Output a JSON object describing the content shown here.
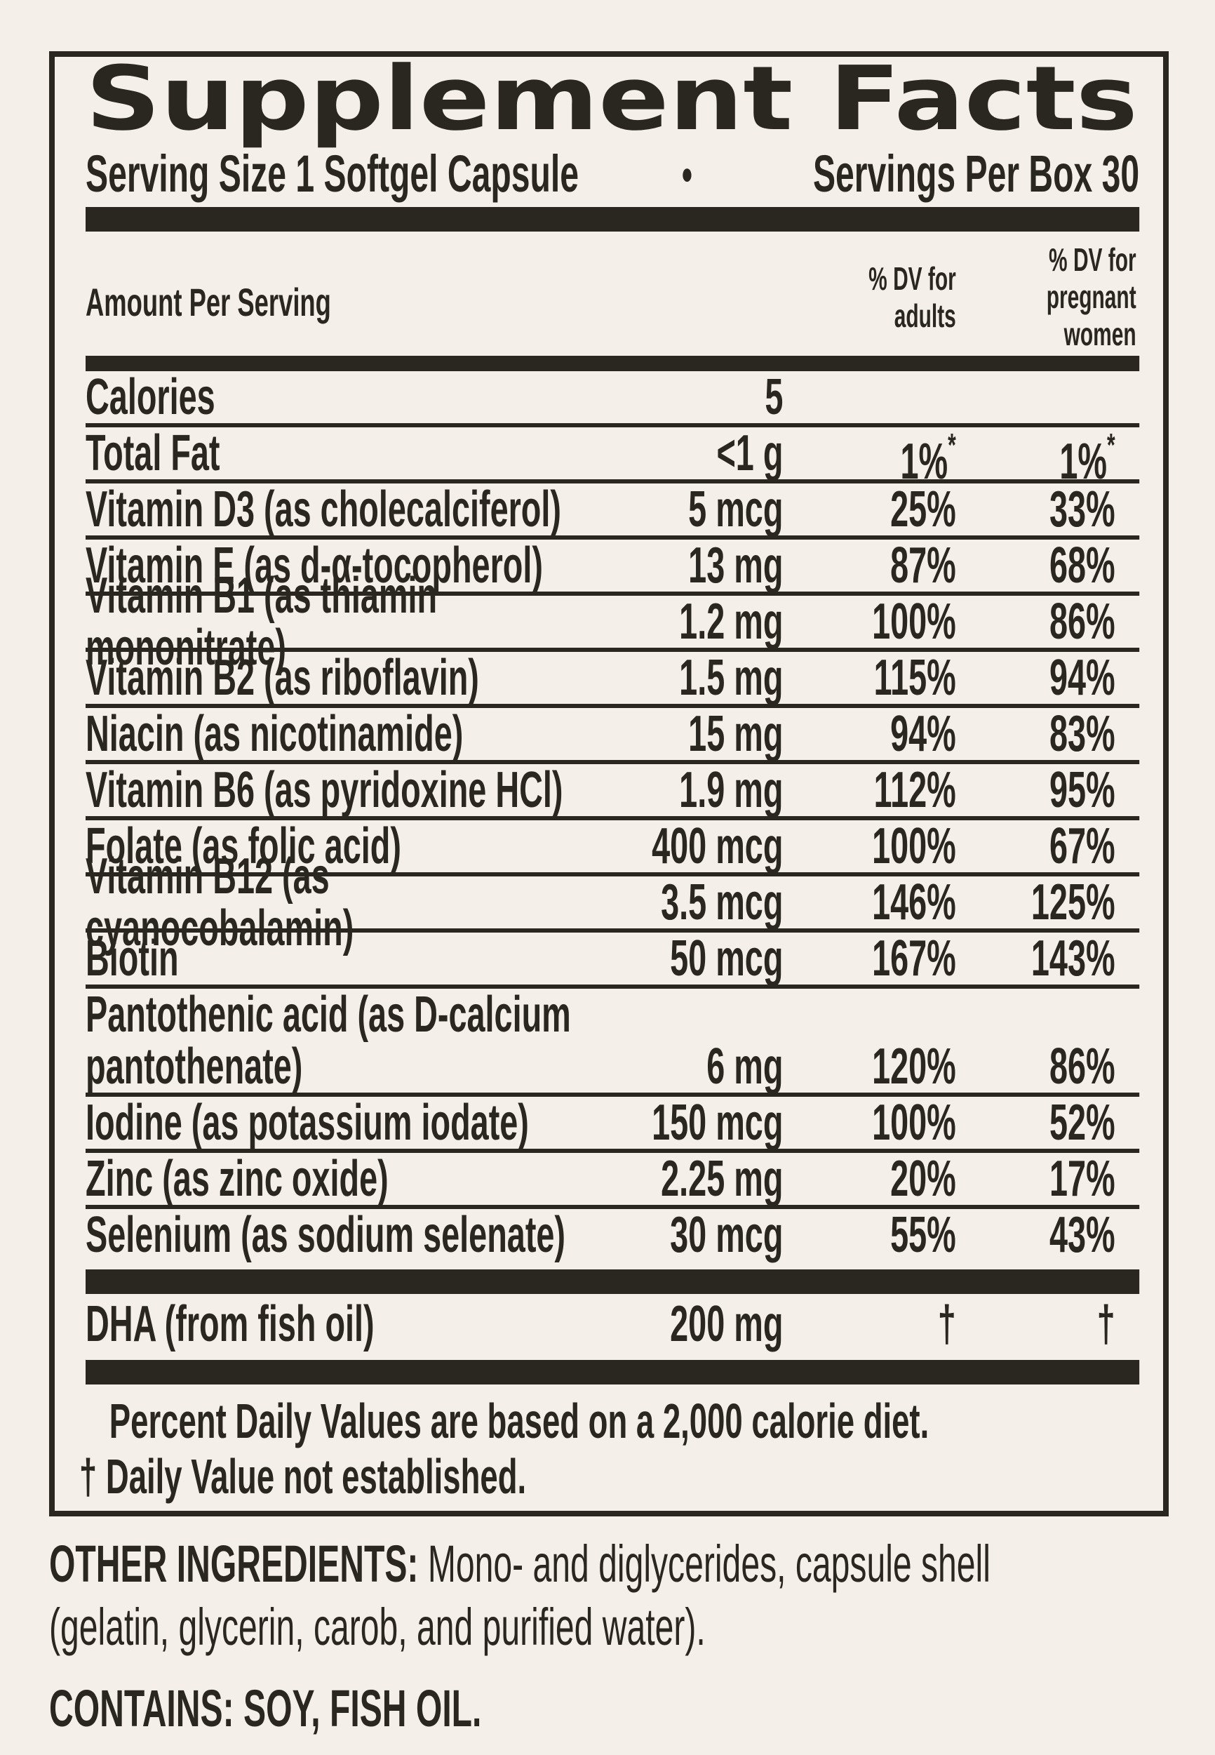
{
  "colors": {
    "background": "#f4efe8",
    "ink": "#2a2721"
  },
  "label": {
    "title": "Supplement Facts",
    "serving_size": "Serving Size 1 Softgel Capsule",
    "bullet": "●",
    "servings_per": "Servings Per Box 30",
    "header": {
      "amount": "Amount Per Serving",
      "dv_adults_lines": [
        "% DV for",
        "adults"
      ],
      "dv_pregnant_lines": [
        "% DV for",
        "pregnant",
        "women"
      ]
    },
    "rows": [
      {
        "label": "Calories",
        "amount": "5",
        "adults": "",
        "pregnant": "",
        "sep": false
      },
      {
        "label": "Total Fat",
        "amount": "<1 g",
        "adults": "1%",
        "adults_sup": "*",
        "pregnant": "1%",
        "pregnant_sup": "*",
        "sep": true
      },
      {
        "label": "Vitamin D3 (as cholecalciferol)",
        "amount": "5 mcg",
        "adults": "25%",
        "pregnant": "33%",
        "sep": true
      },
      {
        "label": "Vitamin E (as d-α-tocopherol)",
        "amount": "13 mg",
        "adults": "87%",
        "pregnant": "68%",
        "sep": true
      },
      {
        "label": "Vitamin B1 (as thiamin mononitrate)",
        "amount": "1.2 mg",
        "adults": "100%",
        "pregnant": "86%",
        "sep": true
      },
      {
        "label": "Vitamin B2 (as riboflavin)",
        "amount": "1.5 mg",
        "adults": "115%",
        "pregnant": "94%",
        "sep": true
      },
      {
        "label": "Niacin (as nicotinamide)",
        "amount": "15 mg",
        "adults": "94%",
        "pregnant": "83%",
        "sep": true
      },
      {
        "label": "Vitamin B6 (as pyridoxine HCl)",
        "amount": "1.9 mg",
        "adults": "112%",
        "pregnant": "95%",
        "sep": true
      },
      {
        "label": "Folate (as folic acid)",
        "amount": "400 mcg",
        "adults": "100%",
        "pregnant": "67%",
        "sep": true
      },
      {
        "label": "Vitamin B12 (as cyanocobalamin)",
        "amount": "3.5 mcg",
        "adults": "146%",
        "pregnant": "125%",
        "sep": true
      },
      {
        "label": "Biotin",
        "amount": "50 mcg",
        "adults": "167%",
        "pregnant": "143%",
        "sep": true
      },
      {
        "label": "Pantothenic acid (as D-calcium",
        "amount": "",
        "adults": "",
        "pregnant": "",
        "sep": true
      },
      {
        "label": "pantothenate)",
        "amount": "6 mg",
        "adults": "120%",
        "pregnant": "86%",
        "sep": false
      },
      {
        "label": "Iodine (as potassium iodate)",
        "amount": "150 mcg",
        "adults": "100%",
        "pregnant": "52%",
        "sep": true
      },
      {
        "label": "Zinc (as zinc oxide)",
        "amount": "2.25 mg",
        "adults": "20%",
        "pregnant": "17%",
        "sep": true
      },
      {
        "label": "Selenium (as sodium selenate)",
        "amount": "30 mcg",
        "adults": "55%",
        "pregnant": "43%",
        "sep": true
      }
    ],
    "dha_row": {
      "label": "DHA (from fish oil)",
      "amount": "200 mg",
      "adults": "†",
      "pregnant": "†"
    },
    "footnotes": [
      "Percent Daily Values are based on a 2,000 calorie diet.",
      "† Daily Value not established."
    ]
  },
  "below": {
    "other_label": "OTHER INGREDIENTS:",
    "other_line1": "Mono- and diglycerides, capsule shell",
    "other_line2": "(gelatin, glycerin, carob, and purified water).",
    "contains": "CONTAINS: SOY, FISH OIL."
  }
}
